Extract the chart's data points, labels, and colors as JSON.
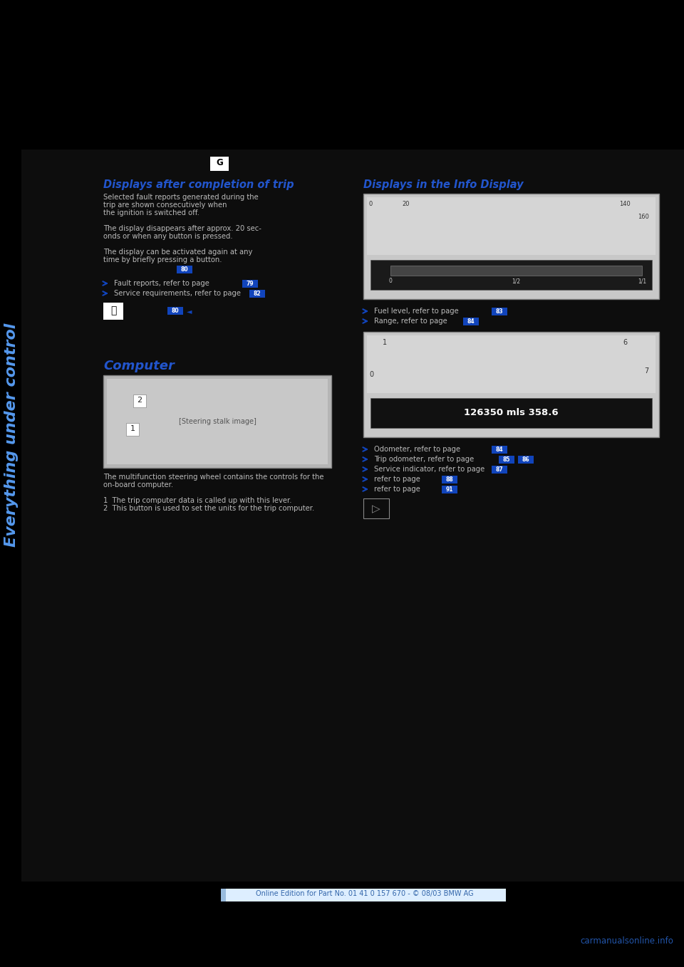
{
  "bg_color": "#000000",
  "sidebar_text": "Everything under control",
  "sidebar_color": "#5599ee",
  "section1_heading": "Displays after completion of trip",
  "section2_heading": "Displays in the Info Display",
  "computer_heading": "Computer",
  "heading_color": "#2255cc",
  "body_color": "#bbbbbb",
  "body_size": 7.2,
  "heading_size": 10.5,
  "arrow_color": "#1144bb",
  "ref_color": "#ffffff",
  "ref_bg": "#1144bb",
  "footer_text": "Online Edition for Part No. 01 41 0 157 670 - © 08/03 BMW AG",
  "footer_bg": "#ddeeff",
  "footer_bar_color": "#99bbdd",
  "watermark": "carmanualsonline.info",
  "watermark_color": "#2255aa",
  "gauge_bg": "#c8c8c8",
  "gauge_border": "#808080",
  "odo_text": "126350 mls 358.6"
}
